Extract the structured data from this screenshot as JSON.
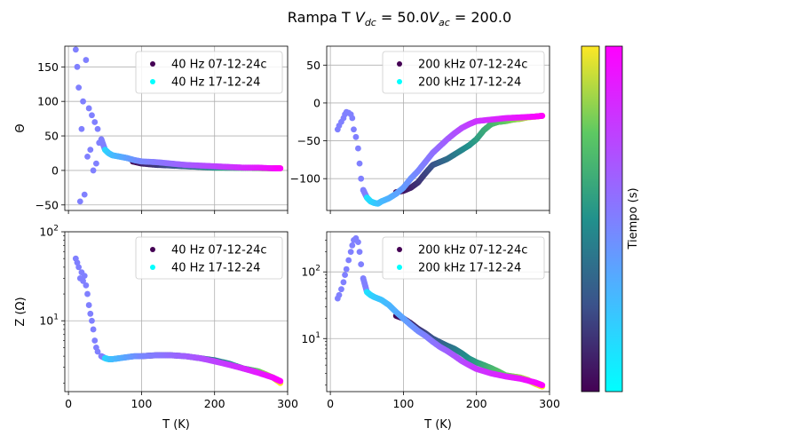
{
  "title": "Rampa T $V_{dc} = 50.0 V_{ac} = 200.0$",
  "title_parts": {
    "prefix": "Rampa T ",
    "v": "V",
    "sub_dc": "dc",
    "mid": " = 50.0",
    "sub_ac": "ac",
    "end": " = 200.0"
  },
  "colors": {
    "viridis": [
      "#440154",
      "#3b528b",
      "#21918c",
      "#5ec962",
      "#fde725"
    ],
    "cool": [
      "#00ffff",
      "#55aaff",
      "#aa55ff",
      "#ff00ff"
    ],
    "grid": "#b0b0b0"
  },
  "colorbar": {
    "label": "Tiempo (s)"
  },
  "chart_data": [
    {
      "id": "theta-40hz",
      "type": "scatter",
      "ylabel": "Θ",
      "xlabel": "",
      "xlim": [
        -5,
        300
      ],
      "ylim": [
        -58,
        180
      ],
      "xscale": "linear",
      "yscale": "linear",
      "xticks": [
        0,
        100,
        200,
        300
      ],
      "xticklabels_visible": false,
      "yticks": [
        -50,
        0,
        50,
        100,
        150
      ],
      "grid": true,
      "legend": {
        "placement": "upper-right",
        "entries": [
          {
            "label": "40 Hz 07-12-24c",
            "color": "#440154"
          },
          {
            "label": "40 Hz 17-12-24",
            "color": "#00ffff"
          }
        ]
      },
      "series": [
        {
          "name": "40 Hz 07-12-24c",
          "colormap": "viridis",
          "x": [
            88,
            100,
            120,
            140,
            160,
            180,
            200,
            220,
            240,
            260,
            275,
            285,
            290
          ],
          "y": [
            13,
            10,
            8,
            7,
            6,
            5,
            4,
            3.8,
            3.5,
            3.3,
            3,
            3,
            3
          ]
        },
        {
          "name": "40 Hz 17-12-24",
          "colormap": "cool",
          "x": [
            10,
            12,
            14,
            16,
            18,
            20,
            22,
            24,
            26,
            28,
            30,
            32,
            34,
            36,
            38,
            40,
            42,
            45,
            50,
            55,
            60,
            70,
            80,
            90,
            100,
            120,
            140,
            160,
            180,
            200,
            220,
            240,
            260,
            280,
            290
          ],
          "y": [
            175,
            150,
            120,
            -45,
            60,
            100,
            -35,
            160,
            20,
            90,
            30,
            80,
            0,
            70,
            10,
            60,
            40,
            45,
            30,
            25,
            22,
            20,
            18,
            15,
            13,
            12,
            10,
            8,
            7,
            6,
            5,
            4,
            4,
            3,
            3
          ]
        }
      ]
    },
    {
      "id": "theta-200khz",
      "type": "scatter",
      "ylabel": "",
      "xlabel": "",
      "xlim": [
        -5,
        300
      ],
      "ylim": [
        -142,
        75
      ],
      "xscale": "linear",
      "yscale": "linear",
      "xticks": [
        0,
        100,
        200,
        300
      ],
      "xticklabels_visible": false,
      "yticks": [
        -100,
        -50,
        0,
        50
      ],
      "grid": true,
      "legend": {
        "placement": "upper-right",
        "entries": [
          {
            "label": "200 kHz 07-12-24c",
            "color": "#440154"
          },
          {
            "label": "200 kHz 17-12-24",
            "color": "#00ffff"
          }
        ]
      },
      "series": [
        {
          "name": "200 kHz 07-12-24c",
          "colormap": "viridis",
          "x": [
            90,
            100,
            110,
            120,
            130,
            140,
            150,
            160,
            170,
            180,
            190,
            200,
            210,
            220,
            230,
            240,
            250,
            260,
            270,
            280,
            290
          ],
          "y": [
            -118,
            -116,
            -112,
            -105,
            -93,
            -82,
            -78,
            -74,
            -68,
            -62,
            -56,
            -48,
            -36,
            -28,
            -25,
            -24,
            -22,
            -21,
            -19,
            -18,
            -17
          ]
        },
        {
          "name": "200 kHz 17-12-24",
          "colormap": "cool",
          "x": [
            10,
            12,
            15,
            18,
            20,
            22,
            25,
            28,
            30,
            32,
            35,
            38,
            40,
            42,
            45,
            50,
            55,
            60,
            65,
            70,
            80,
            90,
            100,
            110,
            120,
            130,
            140,
            150,
            160,
            170,
            180,
            190,
            200,
            220,
            240,
            260,
            280,
            290
          ],
          "y": [
            -35,
            -30,
            -25,
            -20,
            -15,
            -12,
            -13,
            -15,
            -20,
            -35,
            -45,
            -60,
            -80,
            -100,
            -115,
            -125,
            -130,
            -132,
            -133,
            -130,
            -126,
            -120,
            -112,
            -100,
            -90,
            -78,
            -66,
            -57,
            -48,
            -40,
            -33,
            -28,
            -24,
            -22,
            -20,
            -19,
            -18,
            -17
          ]
        }
      ]
    },
    {
      "id": "z-40hz",
      "type": "scatter",
      "ylabel": "Z (Ω)",
      "xlabel": "T (K)",
      "xlim": [
        -5,
        300
      ],
      "ylim": [
        1.6,
        100
      ],
      "xscale": "linear",
      "yscale": "log",
      "xticks": [
        0,
        100,
        200,
        300
      ],
      "xticklabels_visible": true,
      "yticks": [
        10,
        100
      ],
      "yticklabels": [
        "10^1",
        "10^2"
      ],
      "grid": true,
      "legend": {
        "placement": "upper-right",
        "entries": [
          {
            "label": "40 Hz 07-12-24c",
            "color": "#440154"
          },
          {
            "label": "40 Hz 17-12-24",
            "color": "#00ffff"
          }
        ]
      },
      "series": [
        {
          "name": "40 Hz 07-12-24c",
          "colormap": "viridis",
          "x": [
            100,
            120,
            140,
            160,
            180,
            200,
            220,
            240,
            250,
            260,
            270,
            280,
            290
          ],
          "y": [
            4.0,
            4.1,
            4.1,
            4.0,
            3.8,
            3.6,
            3.3,
            2.9,
            2.8,
            2.7,
            2.5,
            2.3,
            2.0
          ]
        },
        {
          "name": "40 Hz 17-12-24",
          "colormap": "cool",
          "x": [
            10,
            12,
            14,
            16,
            18,
            20,
            22,
            24,
            26,
            28,
            30,
            32,
            34,
            36,
            38,
            40,
            45,
            50,
            55,
            60,
            70,
            80,
            90,
            100,
            120,
            140,
            160,
            180,
            200,
            220,
            240,
            260,
            280,
            290
          ],
          "y": [
            50,
            45,
            40,
            30,
            35,
            28,
            32,
            25,
            20,
            15,
            12,
            10,
            8,
            6,
            5,
            4.5,
            4.0,
            3.8,
            3.7,
            3.7,
            3.8,
            3.9,
            4.0,
            4.0,
            4.1,
            4.1,
            4.0,
            3.8,
            3.5,
            3.2,
            2.9,
            2.6,
            2.3,
            2.1
          ]
        }
      ]
    },
    {
      "id": "z-200khz",
      "type": "scatter",
      "ylabel": "",
      "xlabel": "T (K)",
      "xlim": [
        -5,
        300
      ],
      "ylim": [
        1.6,
        400
      ],
      "xscale": "linear",
      "yscale": "log",
      "xticks": [
        0,
        100,
        200,
        300
      ],
      "xticklabels_visible": true,
      "yticks": [
        10,
        100
      ],
      "yticklabels": [
        "10^1",
        "10^2"
      ],
      "grid": true,
      "legend": {
        "placement": "upper-right",
        "entries": [
          {
            "label": "200 kHz 07-12-24c",
            "color": "#440154"
          },
          {
            "label": "200 kHz 17-12-24",
            "color": "#00ffff"
          }
        ]
      },
      "series": [
        {
          "name": "200 kHz 07-12-24c",
          "colormap": "viridis",
          "x": [
            90,
            100,
            110,
            120,
            130,
            140,
            150,
            160,
            170,
            180,
            190,
            200,
            210,
            220,
            230,
            240,
            250,
            260,
            270,
            280,
            290
          ],
          "y": [
            22,
            20,
            17,
            14,
            12,
            10,
            8.8,
            7.8,
            7.0,
            6.0,
            5.0,
            4.4,
            4.0,
            3.6,
            3.2,
            2.8,
            2.7,
            2.6,
            2.4,
            2.1,
            1.9
          ]
        },
        {
          "name": "200 kHz 17-12-24",
          "colormap": "cool",
          "x": [
            10,
            12,
            15,
            18,
            20,
            22,
            25,
            28,
            30,
            32,
            35,
            38,
            40,
            42,
            45,
            50,
            55,
            60,
            70,
            80,
            90,
            100,
            110,
            120,
            130,
            140,
            150,
            160,
            170,
            180,
            190,
            200,
            220,
            240,
            260,
            280,
            290
          ],
          "y": [
            40,
            45,
            55,
            70,
            90,
            110,
            150,
            200,
            250,
            300,
            320,
            280,
            200,
            130,
            80,
            50,
            45,
            42,
            38,
            32,
            25,
            20,
            16,
            13,
            11,
            9,
            7.5,
            6.5,
            5.5,
            4.6,
            4.0,
            3.5,
            3.0,
            2.7,
            2.5,
            2.2,
            2.0
          ]
        }
      ]
    }
  ]
}
